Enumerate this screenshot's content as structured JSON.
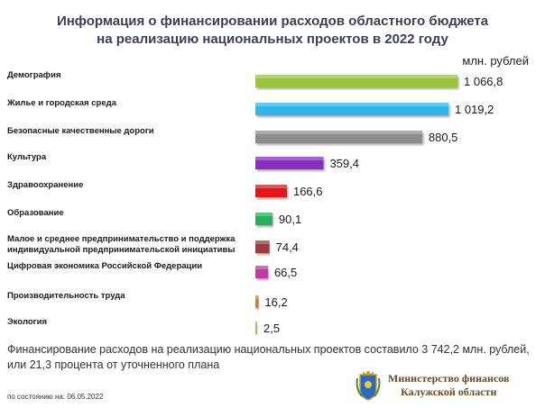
{
  "title_lines": [
    "Информация о финансировании расходов областного бюджета",
    "на реализацию национальных проектов в 2022 году"
  ],
  "unit": "млн. рублей",
  "summary_lines": [
    "Финансирование расходов на реализацию национальных проектов составило 3 742,2 млн. рублей,",
    "или 21,3 процента от уточненного плана"
  ],
  "as_of": "по состоянию на: 06.05.2022",
  "ministry_lines": [
    "Министерство финансов",
    "Калужской области"
  ],
  "emblem_icon": "kaluga-coat-of-arms-icon",
  "chart_data": {
    "type": "bar",
    "orientation": "horizontal",
    "categories": [
      [
        "Демография"
      ],
      [
        "Жилье и городская среда"
      ],
      [
        "Безопасные качественные дороги"
      ],
      [
        "Культура"
      ],
      [
        "Здравоохранение"
      ],
      [
        "Образование"
      ],
      [
        "Малое и среднее предпринимательство и поддержка",
        "индивидуальной предпринимательской инициативы"
      ],
      [
        "Цифровая экономика Российской Федерации"
      ],
      [
        "Производительность труда"
      ],
      [
        "Экология"
      ]
    ],
    "values": [
      1066.8,
      1019.2,
      880.5,
      359.4,
      166.6,
      90.1,
      74.4,
      66.5,
      16.2,
      2.5
    ],
    "value_labels": [
      "1 066,8",
      "1 019,2",
      "880,5",
      "359,4",
      "166,6",
      "90,1",
      "74,4",
      "66,5",
      "16,2",
      "2,5"
    ],
    "colors": [
      "#9bc43a",
      "#2eb7ea",
      "#8c8c8c",
      "#8a2fbf",
      "#e3141e",
      "#20b35a",
      "#9b3b3b",
      "#c03aa6",
      "#e07a1a",
      "#a6b85a"
    ],
    "grid": false,
    "legend": "none"
  }
}
